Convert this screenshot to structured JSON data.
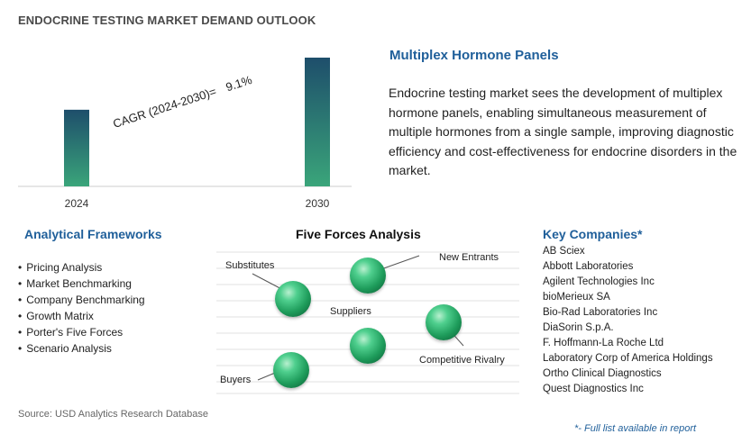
{
  "header": {
    "title": "ENDOCRINE TESTING MARKET DEMAND OUTLOOK"
  },
  "chart_data": {
    "type": "bar",
    "categories": [
      "2024",
      "2030"
    ],
    "values": [
      1,
      1.68
    ],
    "annotation": {
      "label": "CAGR (2024-2030)=",
      "value": "9.1%"
    },
    "bar_color_top": "#1e4e6b",
    "bar_color_bottom": "#3aa57a"
  },
  "panel": {
    "title": "Multiplex Hormone Panels",
    "description": "Endocrine testing market sees the development of multiplex hormone panels, enabling simultaneous measurement of multiple hormones from a single sample, improving diagnostic efficiency and cost-effectiveness for endocrine disorders in the market."
  },
  "frameworks": {
    "heading": "Analytical Frameworks",
    "items": [
      "Pricing Analysis",
      "Market Benchmarking",
      "Company Benchmarking",
      "Growth Matrix",
      "Porter's Five Forces",
      "Scenario Analysis"
    ]
  },
  "five_forces": {
    "heading": "Five Forces Analysis",
    "labels": {
      "substitutes": "Substitutes",
      "new_entrants": "New Entrants",
      "suppliers": "Suppliers",
      "competitive_rivalry": "Competitive Rivalry",
      "buyers": "Buyers"
    }
  },
  "companies": {
    "heading": "Key Companies*",
    "items": [
      "AB Sciex",
      "Abbott Laboratories",
      "Agilent Technologies Inc",
      "bioMerieux SA",
      "Bio-Rad Laboratories Inc",
      "DiaSorin S.p.A.",
      "F. Hoffmann-La Roche Ltd",
      "Laboratory Corp of America Holdings",
      "Ortho Clinical Diagnostics",
      "Quest Diagnostics Inc"
    ]
  },
  "footer": {
    "source": "Source: USD Analytics Research Database",
    "footnote": "*- Full list available in report"
  }
}
